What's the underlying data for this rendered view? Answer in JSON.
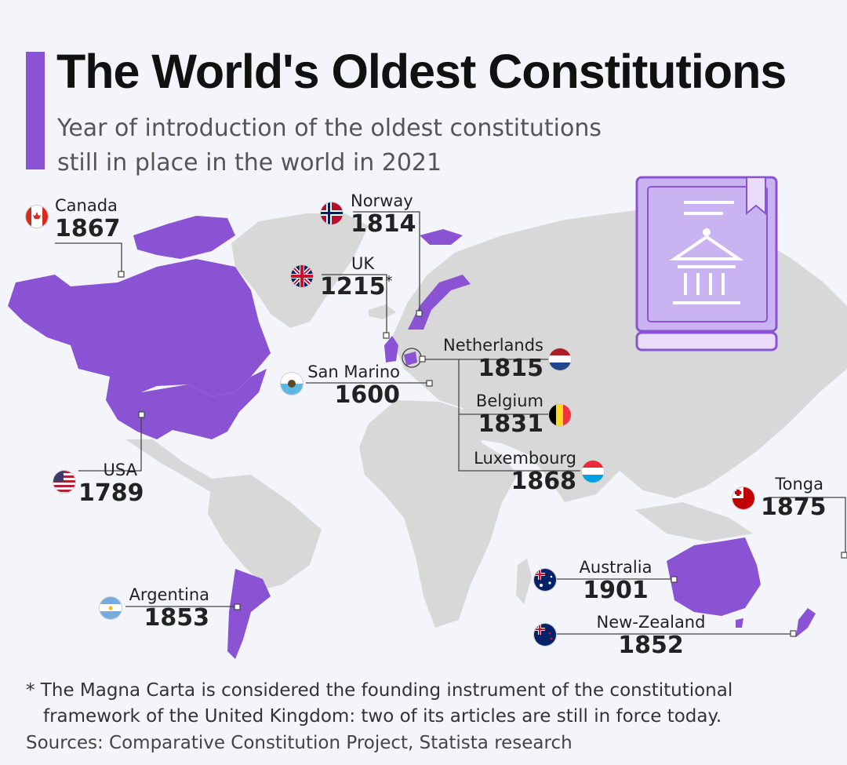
{
  "colors": {
    "accent": "#8a53d4",
    "highlight": "#8a53d4",
    "land": "#d8d8d8",
    "background": "#f4f5fb",
    "icon_fill": "#c9b3f0"
  },
  "header": {
    "title": "The World's Oldest Constitutions",
    "subtitle_line1": "Year of introduction of the oldest constitutions",
    "subtitle_line2": "still in place in the world in 2021"
  },
  "countries": [
    {
      "id": "canada",
      "name": "Canada",
      "year": "1867",
      "flag": "canada-flag-icon"
    },
    {
      "id": "norway",
      "name": "Norway",
      "year": "1814",
      "flag": "norway-flag-icon"
    },
    {
      "id": "uk",
      "name": "UK",
      "year": "1215",
      "note_mark": "*",
      "flag": "uk-flag-icon"
    },
    {
      "id": "netherlands",
      "name": "Netherlands",
      "year": "1815",
      "flag": "netherlands-flag-icon"
    },
    {
      "id": "san-marino",
      "name": "San Marino",
      "year": "1600",
      "flag": "san-marino-flag-icon"
    },
    {
      "id": "belgium",
      "name": "Belgium",
      "year": "1831",
      "flag": "belgium-flag-icon"
    },
    {
      "id": "luxembourg",
      "name": "Luxembourg",
      "year": "1868",
      "flag": "luxembourg-flag-icon"
    },
    {
      "id": "usa",
      "name": "USA",
      "year": "1789",
      "flag": "usa-flag-icon"
    },
    {
      "id": "tonga",
      "name": "Tonga",
      "year": "1875",
      "flag": "tonga-flag-icon"
    },
    {
      "id": "argentina",
      "name": "Argentina",
      "year": "1853",
      "flag": "argentina-flag-icon"
    },
    {
      "id": "australia",
      "name": "Australia",
      "year": "1901",
      "flag": "australia-flag-icon"
    },
    {
      "id": "new-zealand",
      "name": "New-Zealand",
      "year": "1852",
      "flag": "new-zealand-flag-icon"
    }
  ],
  "footnote": {
    "line1": "* The Magna Carta is considered the founding instrument of the constitutional",
    "line2": "framework of the United Kingdom: two of its articles are still in force today."
  },
  "sources": "Sources: Comparative Constitution Project, Statista research",
  "decor": {
    "icon": "constitution-book-icon"
  }
}
